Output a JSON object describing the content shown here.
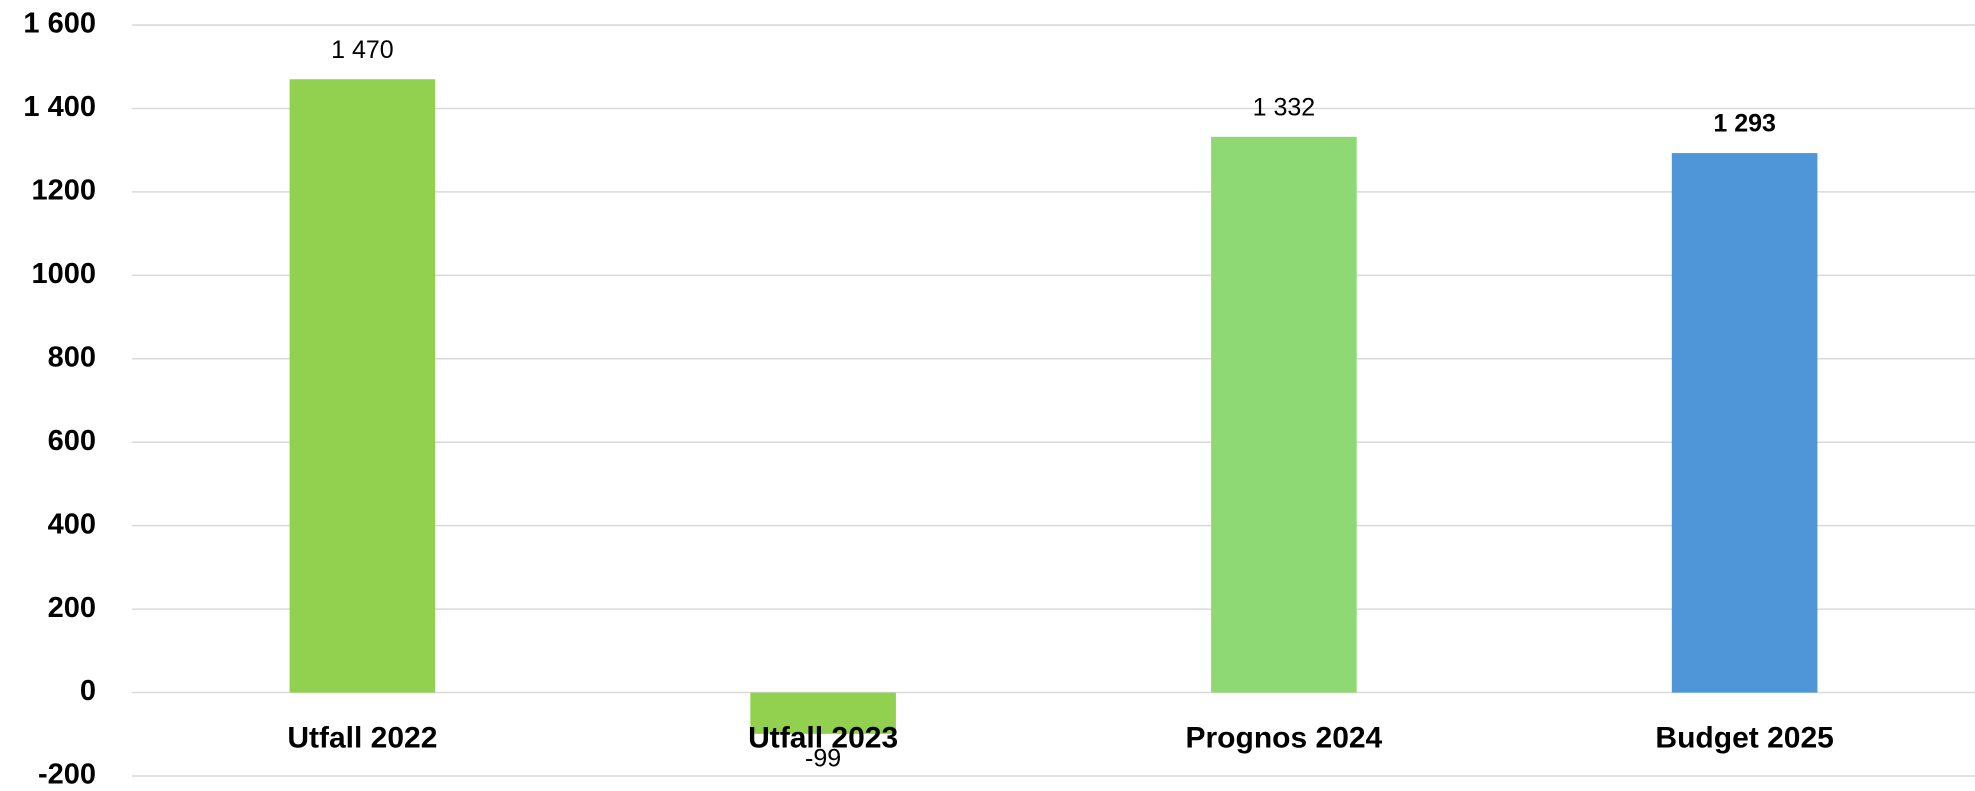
{
  "chart_data": {
    "type": "bar",
    "categories": [
      "Utfall 2022",
      "Utfall 2023",
      "Prognos 2024",
      "Budget 2025"
    ],
    "values": [
      1470,
      -99,
      1332,
      1293
    ],
    "value_labels": [
      "1 470",
      "-99",
      "1 332",
      "1 293"
    ],
    "colors": [
      "#92d050",
      "#92d050",
      "#8ed973",
      "#4f96d8"
    ],
    "ylim": [
      -200,
      1600
    ],
    "yticks": [
      -200,
      0,
      200,
      400,
      600,
      800,
      1000,
      1200,
      {
        "value": 1400,
        "label": "1 400"
      },
      {
        "value": 1600,
        "label": "1 600"
      }
    ],
    "grid": true
  }
}
